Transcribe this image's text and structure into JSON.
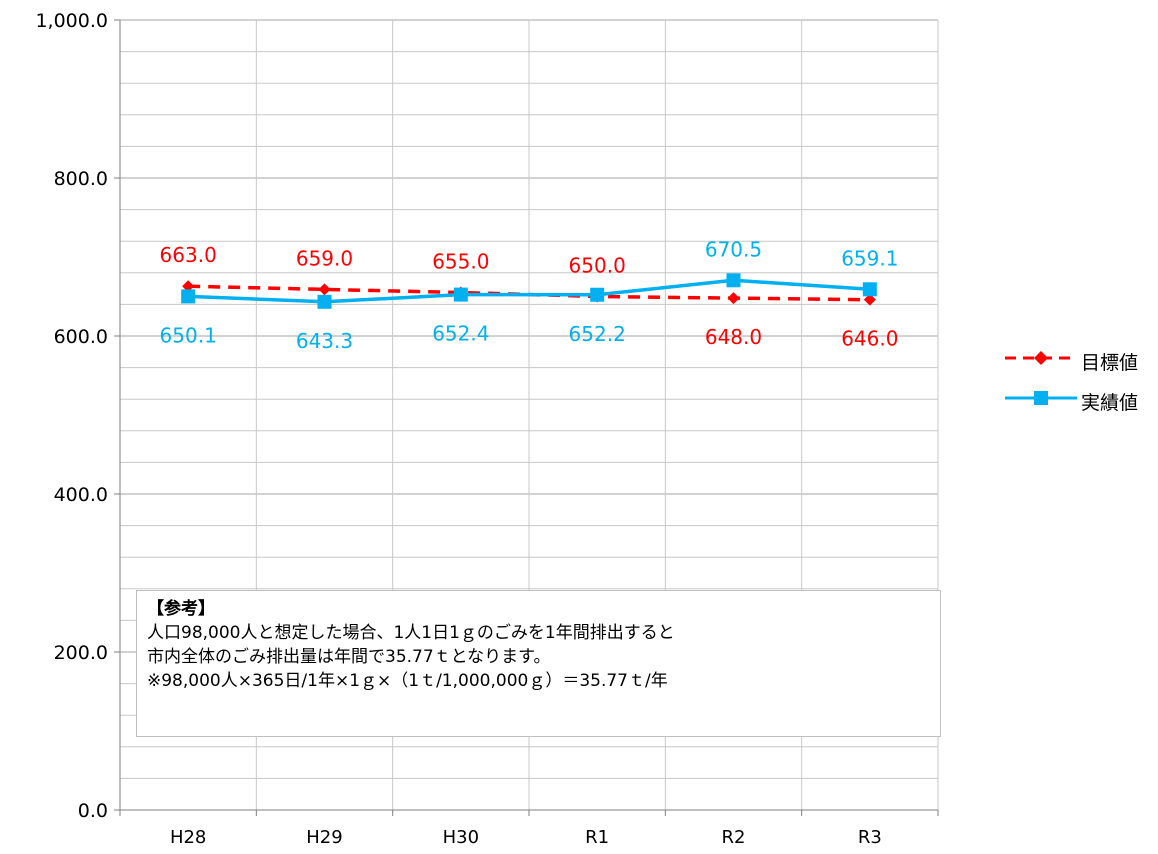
{
  "chart_data": {
    "type": "line",
    "categories": [
      "H28",
      "H29",
      "H30",
      "R1",
      "R2",
      "R3"
    ],
    "series": [
      {
        "name": "目標値",
        "values": [
          663.0,
          659.0,
          655.0,
          650.0,
          648.0,
          646.0
        ],
        "labels": [
          "663.0",
          "659.0",
          "655.0",
          "650.0",
          "648.0",
          "646.0"
        ],
        "color": "#ff0000",
        "style": "dashed",
        "marker": "diamond"
      },
      {
        "name": "実績値",
        "values": [
          650.1,
          643.3,
          652.4,
          652.2,
          670.5,
          659.1
        ],
        "labels": [
          "650.1",
          "643.3",
          "652.4",
          "652.2",
          "670.5",
          "659.1"
        ],
        "color": "#00b0f0",
        "style": "solid",
        "marker": "square"
      }
    ],
    "ylim": [
      0,
      1000
    ],
    "yticks": [
      "0.0",
      "200.0",
      "400.0",
      "600.0",
      "800.0",
      "1,000.0"
    ],
    "ytick_values": [
      0,
      200,
      400,
      600,
      800,
      1000
    ],
    "grid": true,
    "legend_position": "right"
  },
  "note": {
    "title": "【参考】",
    "lines": [
      "人口98,000人と想定した場合、1人1日1ｇのごみを1年間排出すると",
      "市内全体のごみ排出量は年間で35.77ｔとなります。",
      "※98,000人×365日/1年×1ｇ×（1ｔ/1,000,000ｇ）＝35.77ｔ/年"
    ]
  }
}
